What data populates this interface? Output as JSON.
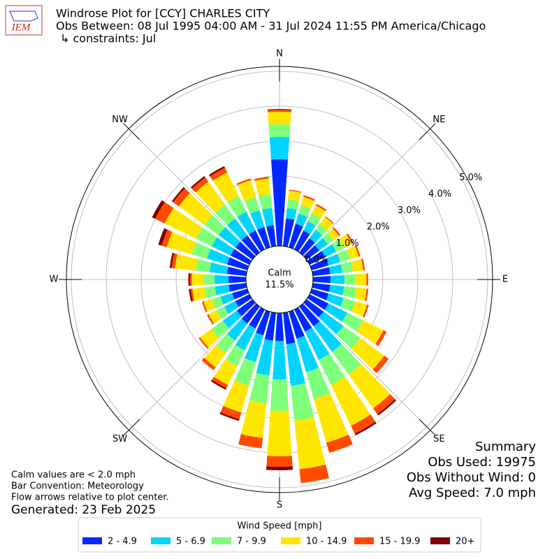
{
  "chart_data": {
    "type": "windrose",
    "logo_text": "IEM",
    "title": "Windrose Plot for [CCY] CHARLES CITY",
    "subtitle": "Obs Between: 08 Jul 1995 04:00 AM - 31 Jul 2024 11:55 PM America/Chicago",
    "constraints": "↳ constraints: Jul",
    "calm": {
      "label": "Calm",
      "value": 11.5,
      "value_label": "11.5%"
    },
    "x": [
      0,
      10,
      20,
      30,
      40,
      50,
      60,
      70,
      80,
      90,
      100,
      110,
      120,
      130,
      140,
      150,
      160,
      170,
      180,
      190,
      200,
      210,
      220,
      230,
      240,
      250,
      260,
      270,
      280,
      290,
      300,
      310,
      320,
      330,
      340,
      350
    ],
    "xlim": [
      0,
      360
    ],
    "xticks": [
      {
        "value": 0,
        "label": "N"
      },
      {
        "value": 45,
        "label": "NE"
      },
      {
        "value": 90,
        "label": "E"
      },
      {
        "value": 135,
        "label": "SE"
      },
      {
        "value": 180,
        "label": "S"
      },
      {
        "value": 225,
        "label": "SW"
      },
      {
        "value": 270,
        "label": "W"
      },
      {
        "value": 315,
        "label": "NW"
      }
    ],
    "rlim": [
      0,
      5.14
    ],
    "rticks": [
      {
        "value": 0,
        "label": "0.0%"
      },
      {
        "value": 1,
        "label": "1.0%"
      },
      {
        "value": 2,
        "label": "2.0%"
      },
      {
        "value": 3,
        "label": "3.0%"
      },
      {
        "value": 4,
        "label": "4.0%"
      },
      {
        "value": 5,
        "label": "5.0%"
      }
    ],
    "grid": true,
    "legend_title": "Wind Speed [mph]",
    "series": [
      {
        "name": "2 - 4.9",
        "color": "#0028ff",
        "values": [
          2.48,
          0.8,
          0.7,
          0.6,
          0.5,
          0.45,
          0.5,
          0.5,
          0.5,
          0.5,
          0.5,
          0.5,
          0.6,
          0.6,
          0.7,
          0.7,
          0.8,
          0.9,
          0.8,
          0.8,
          0.7,
          0.6,
          0.6,
          0.55,
          0.45,
          0.45,
          0.5,
          0.5,
          0.55,
          0.6,
          0.6,
          0.6,
          0.6,
          0.6,
          0.6,
          0.6
        ]
      },
      {
        "name": "5 - 6.9",
        "color": "#00d4ff",
        "values": [
          0.64,
          0.3,
          0.3,
          0.3,
          0.3,
          0.3,
          0.35,
          0.35,
          0.35,
          0.4,
          0.4,
          0.45,
          0.6,
          0.7,
          0.9,
          0.9,
          1.0,
          1.2,
          1.1,
          1.0,
          0.8,
          0.7,
          0.6,
          0.5,
          0.35,
          0.35,
          0.4,
          0.4,
          0.5,
          0.6,
          0.6,
          0.6,
          0.6,
          0.6,
          0.5,
          0.5
        ]
      },
      {
        "name": "7 - 9.9",
        "color": "#7dff7a",
        "values": [
          0.36,
          0.25,
          0.25,
          0.25,
          0.2,
          0.2,
          0.25,
          0.3,
          0.3,
          0.3,
          0.35,
          0.35,
          0.5,
          0.6,
          0.8,
          0.8,
          0.8,
          1.0,
          0.9,
          0.8,
          0.7,
          0.5,
          0.45,
          0.4,
          0.25,
          0.25,
          0.3,
          0.3,
          0.4,
          0.45,
          0.5,
          0.5,
          0.5,
          0.5,
          0.4,
          0.4
        ]
      },
      {
        "name": "10 - 14.9",
        "color": "#ffe600",
        "values": [
          0.36,
          0.25,
          0.25,
          0.25,
          0.25,
          0.2,
          0.25,
          0.25,
          0.3,
          0.33,
          0.3,
          0.35,
          0.65,
          0.85,
          1.2,
          1.3,
          1.3,
          1.4,
          1.3,
          1.0,
          0.8,
          0.6,
          0.5,
          0.4,
          0.25,
          0.25,
          0.35,
          0.35,
          0.6,
          0.75,
          1.0,
          0.9,
          0.8,
          0.75,
          0.5,
          0.45
        ]
      },
      {
        "name": "15 - 19.9",
        "color": "#ff4a00",
        "values": [
          0.06,
          0.03,
          0.05,
          0.05,
          0.03,
          0.05,
          0.05,
          0.05,
          0.05,
          0.05,
          0.05,
          0.05,
          0.1,
          0.15,
          0.2,
          0.25,
          0.3,
          0.4,
          0.3,
          0.3,
          0.2,
          0.1,
          0.1,
          0.05,
          0.05,
          0.05,
          0.05,
          0.05,
          0.1,
          0.15,
          0.3,
          0.2,
          0.15,
          0.15,
          0.05,
          0.05
        ]
      },
      {
        "name": "20+",
        "color": "#800000",
        "values": [
          0.02,
          0,
          0,
          0,
          0,
          0,
          0,
          0,
          0,
          0,
          0,
          0,
          0,
          0,
          0.05,
          0.05,
          0,
          0,
          0.1,
          0,
          0.05,
          0.05,
          0,
          0,
          0,
          0,
          0.05,
          0.05,
          0.05,
          0.1,
          0.1,
          0.05,
          0.05,
          0.05,
          0,
          0
        ]
      }
    ],
    "notes": [
      "Calm values are < 2.0 mph",
      "Bar Convention: Meteorology",
      "Flow arrows relative to plot center."
    ],
    "generated": "Generated: 23 Feb 2025",
    "summary": [
      "Summary",
      "Obs Used: 19975",
      "Obs Without Wind: 0",
      "Avg Speed: 7.0 mph"
    ]
  }
}
